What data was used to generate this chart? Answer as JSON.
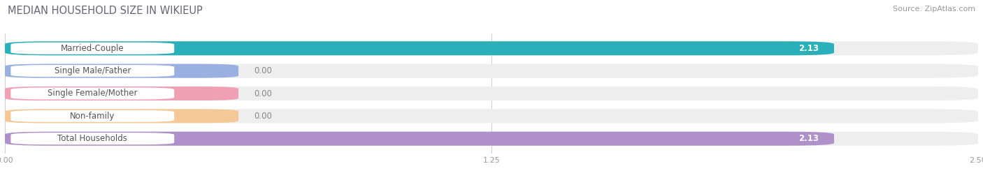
{
  "title": "MEDIAN HOUSEHOLD SIZE IN WIKIEUP",
  "source": "Source: ZipAtlas.com",
  "categories": [
    "Married-Couple",
    "Single Male/Father",
    "Single Female/Mother",
    "Non-family",
    "Total Households"
  ],
  "values": [
    2.13,
    0.0,
    0.0,
    0.0,
    2.13
  ],
  "bar_colors": [
    "#29b0b8",
    "#9ab0e0",
    "#f0a0b5",
    "#f5c898",
    "#b090c8"
  ],
  "xlim": [
    0,
    2.5
  ],
  "xticks": [
    0.0,
    1.25,
    2.5
  ],
  "xtick_labels": [
    "0.00",
    "1.25",
    "2.50"
  ],
  "title_fontsize": 10.5,
  "source_fontsize": 8,
  "label_fontsize": 8.5,
  "value_fontsize": 8.5,
  "figsize": [
    14.06,
    2.68
  ],
  "dpi": 100,
  "bg_color": "#ffffff",
  "bar_bg_color": "#eeeeee",
  "label_box_color": "#ffffff"
}
